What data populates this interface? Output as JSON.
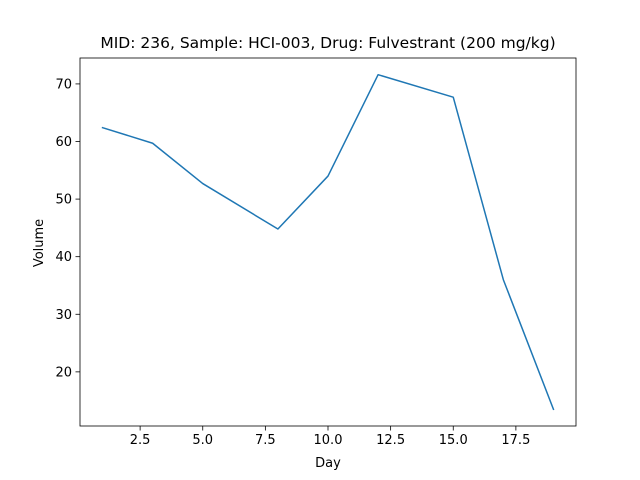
{
  "chart_data": {
    "type": "line",
    "title": "MID: 236, Sample: HCI-003, Drug: Fulvestrant (200 mg/kg)",
    "xlabel": "Day",
    "ylabel": "Volume",
    "xlim": [
      0.1,
      19.9
    ],
    "ylim": [
      10.6,
      74.5
    ],
    "xticks": [
      2.5,
      5.0,
      7.5,
      10.0,
      12.5,
      15.0,
      17.5
    ],
    "xtick_labels": [
      "2.5",
      "5.0",
      "7.5",
      "10.0",
      "12.5",
      "15.0",
      "17.5"
    ],
    "yticks": [
      20,
      30,
      40,
      50,
      60,
      70
    ],
    "ytick_labels": [
      "20",
      "30",
      "40",
      "50",
      "60",
      "70"
    ],
    "grid": false,
    "series": [
      {
        "color": "#1f77b4",
        "x": [
          1,
          3,
          5,
          8,
          10,
          12,
          15,
          17,
          19
        ],
        "y": [
          62.4,
          59.7,
          52.7,
          44.8,
          54.0,
          71.6,
          67.7,
          36.0,
          13.5
        ]
      }
    ]
  }
}
